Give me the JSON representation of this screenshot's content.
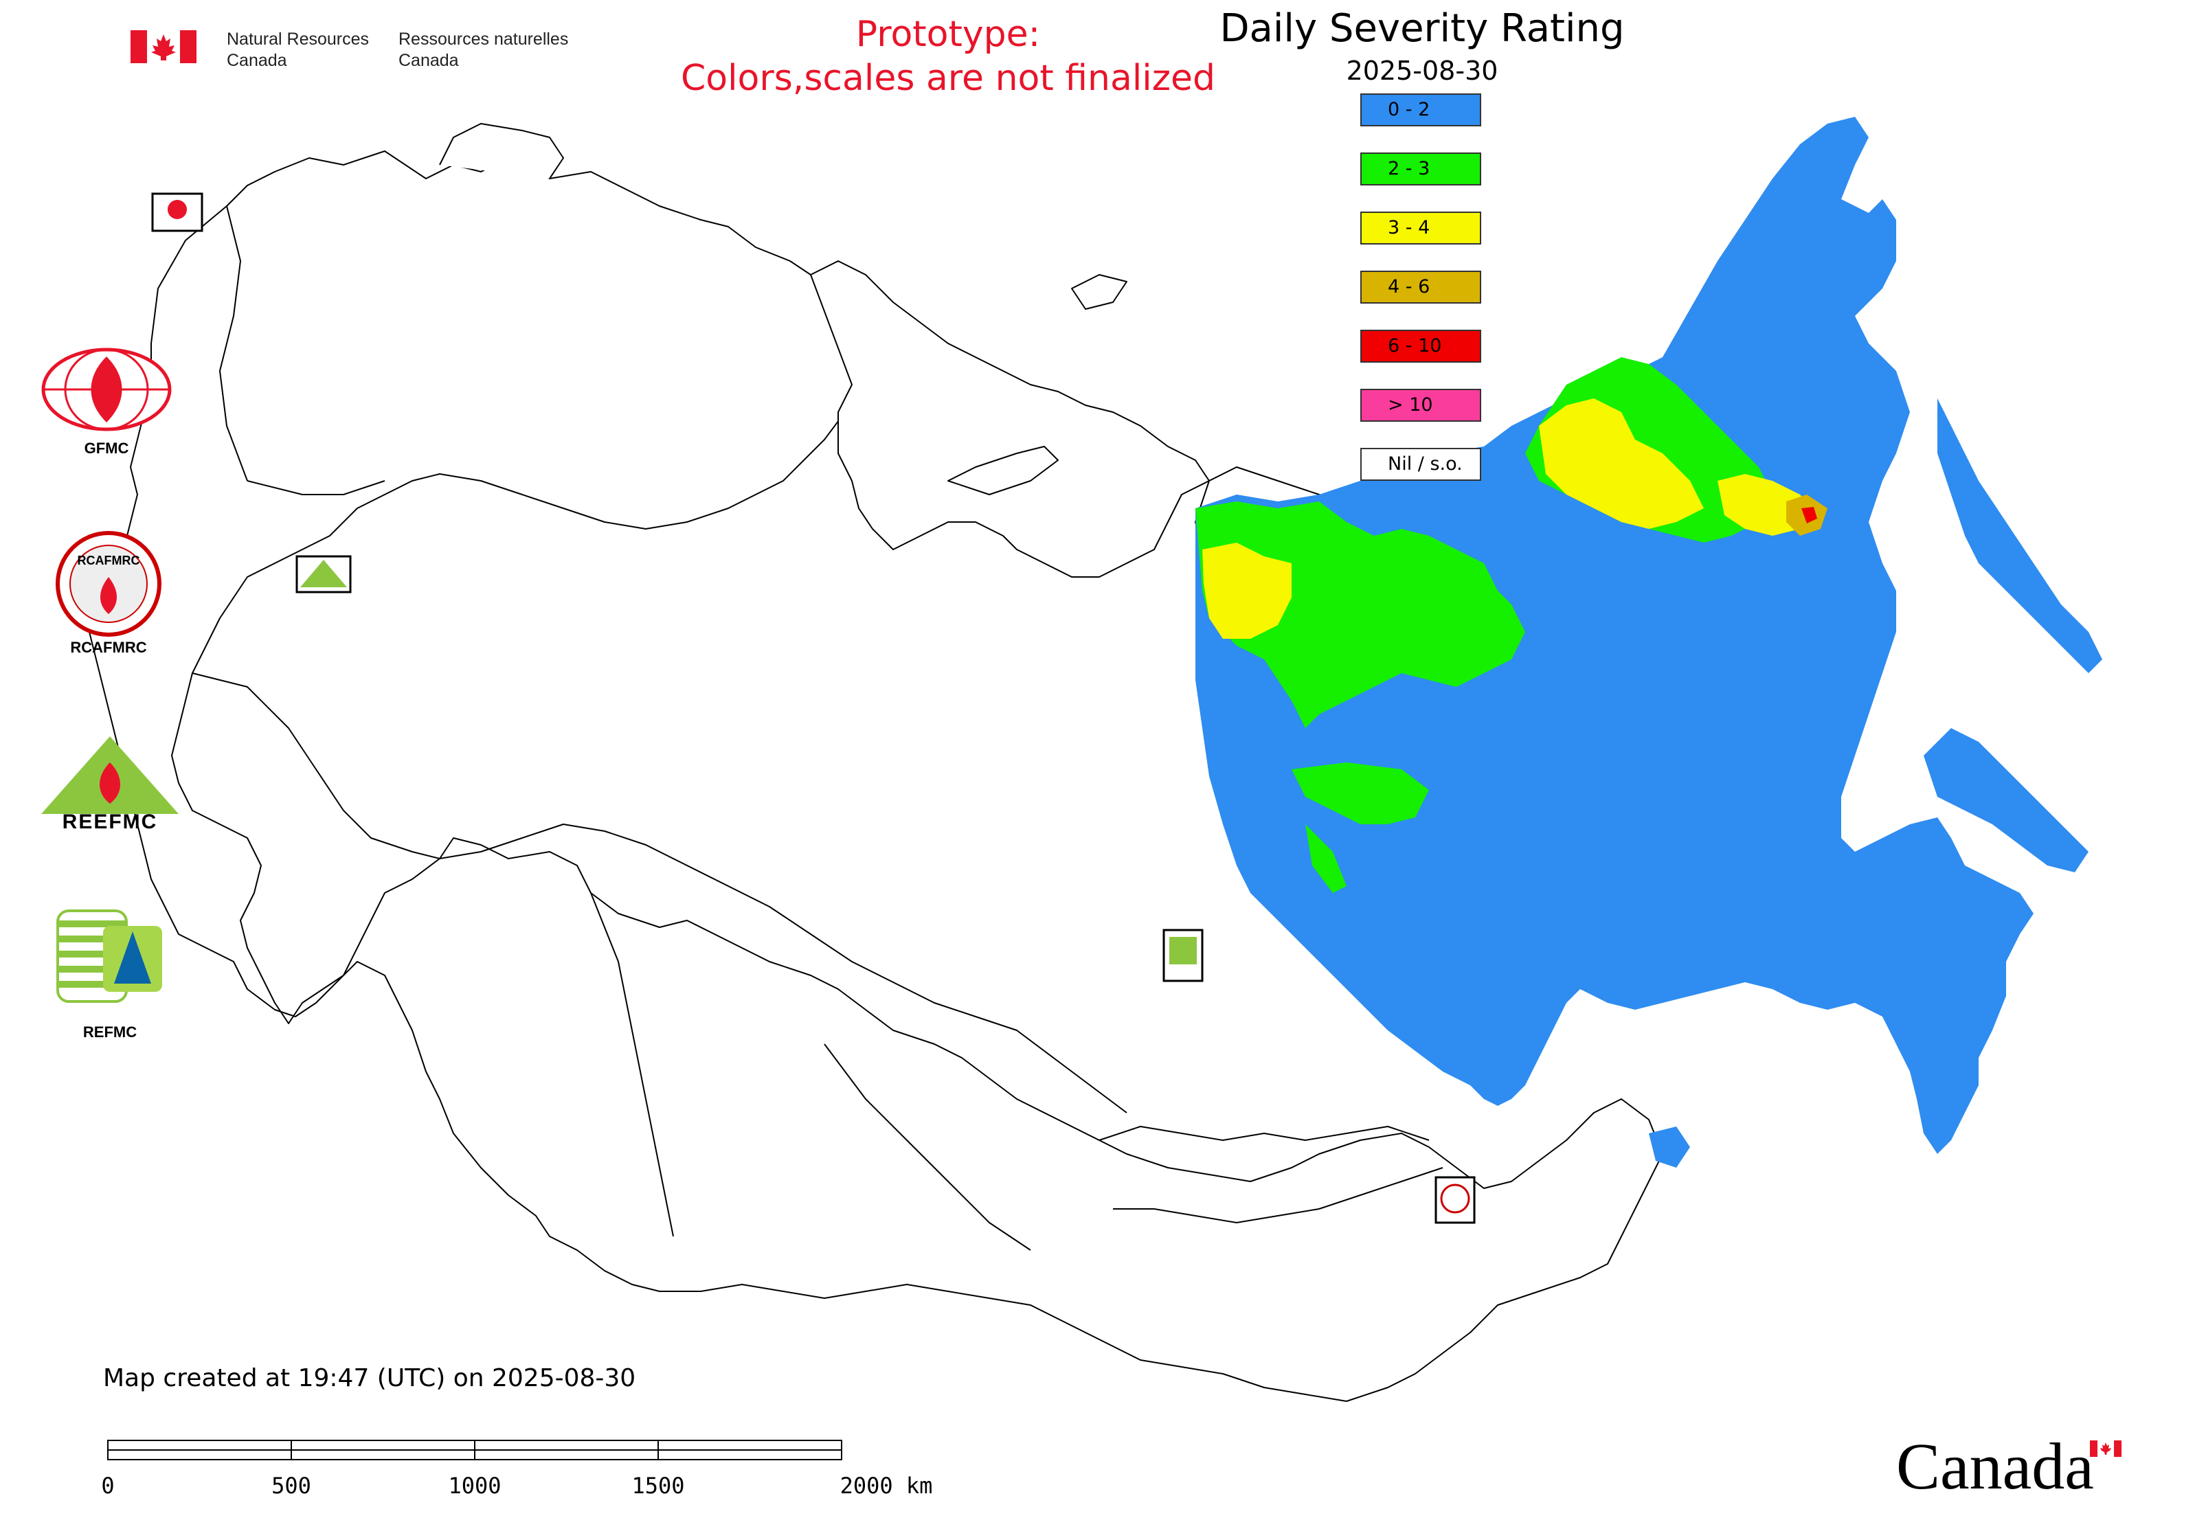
{
  "header": {
    "dept_en_line1": "Natural Resources",
    "dept_en_line2": "Canada",
    "dept_fr_line1": "Ressources naturelles",
    "dept_fr_line2": "Canada",
    "prototype_line1": "Prototype:",
    "prototype_line2": "Colors,scales are not finalized",
    "prototype_color": "#e8142a"
  },
  "map": {
    "title": "Daily Severity Rating",
    "date": "2025-08-30",
    "created_note": "Map created at 19:47 (UTC) on 2025-08-30"
  },
  "legend": [
    {
      "label": "0 - 2",
      "color": "#2f8cf0"
    },
    {
      "label": "2 - 3",
      "color": "#14f000"
    },
    {
      "label": "3 - 4",
      "color": "#f7f700"
    },
    {
      "label": "4 - 6",
      "color": "#d8b400"
    },
    {
      "label": "6 - 10",
      "color": "#f00000"
    },
    {
      "label": "> 10",
      "color": "#fa3c9c"
    },
    {
      "label": "Nil / s.o.",
      "color": "#ffffff"
    }
  ],
  "logos": {
    "gfmc": "GFMC",
    "rcafmrc": "RCAFMRC",
    "rcafmrc_inner": "RCAFMRC",
    "reefmc": "REEFMC",
    "refmc": "REFMC"
  },
  "scalebar": {
    "labels": [
      "0",
      "500",
      "1000",
      "1500",
      "2000 km"
    ]
  },
  "footer": {
    "wordmark": "Canada"
  }
}
